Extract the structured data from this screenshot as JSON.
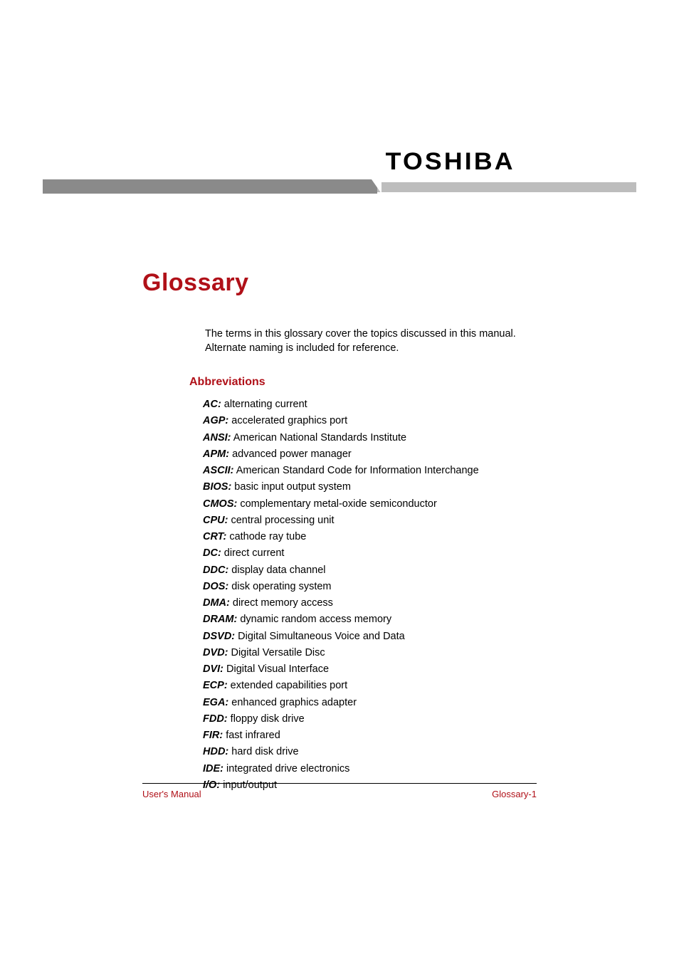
{
  "logo": "TOSHIBA",
  "title": "Glossary",
  "intro": "The terms in this glossary cover the topics discussed in this manual. Alternate naming is included for reference.",
  "section_heading": "Abbreviations",
  "entries": [
    {
      "term": "AC:",
      "def": " alternating current"
    },
    {
      "term": "AGP:",
      "def": " accelerated graphics port"
    },
    {
      "term": "ANSI:",
      "def": " American National Standards Institute"
    },
    {
      "term": "APM:",
      "def": " advanced power manager"
    },
    {
      "term": "ASCII:",
      "def": " American Standard Code for Information Interchange"
    },
    {
      "term": "BIOS:",
      "def": " basic input output system"
    },
    {
      "term": "CMOS:",
      "def": " complementary metal-oxide semiconductor"
    },
    {
      "term": "CPU:",
      "def": " central processing unit"
    },
    {
      "term": "CRT:",
      "def": " cathode ray tube"
    },
    {
      "term": "DC:",
      "def": " direct current"
    },
    {
      "term": "DDC:",
      "def": " display data channel"
    },
    {
      "term": "DOS:",
      "def": " disk operating system"
    },
    {
      "term": "DMA:",
      "def": " direct memory access"
    },
    {
      "term": "DRAM:",
      "def": " dynamic random access memory"
    },
    {
      "term": "DSVD:",
      "def": " Digital Simultaneous Voice and Data"
    },
    {
      "term": "DVD:",
      "def": " Digital Versatile Disc"
    },
    {
      "term": "DVI:",
      "def": " Digital Visual Interface"
    },
    {
      "term": "ECP:",
      "def": " extended capabilities port"
    },
    {
      "term": "EGA:",
      "def": " enhanced graphics adapter"
    },
    {
      "term": "FDD:",
      "def": " floppy disk drive"
    },
    {
      "term": "FIR:",
      "def": " fast infrared"
    },
    {
      "term": "HDD:",
      "def": " hard disk drive"
    },
    {
      "term": "IDE:",
      "def": " integrated drive electronics"
    },
    {
      "term": "I/O:",
      "def": " input/output"
    }
  ],
  "footer_left": "User's Manual",
  "footer_right": "Glossary-1",
  "colors": {
    "accent": "#b01018",
    "band_dark": "#8a8a8a",
    "band_light": "#bdbdbd",
    "text": "#000000",
    "background": "#ffffff"
  },
  "typography": {
    "title_fontsize": 34,
    "heading_fontsize": 16,
    "body_fontsize": 14.5,
    "footer_fontsize": 13,
    "logo_fontsize": 34
  }
}
